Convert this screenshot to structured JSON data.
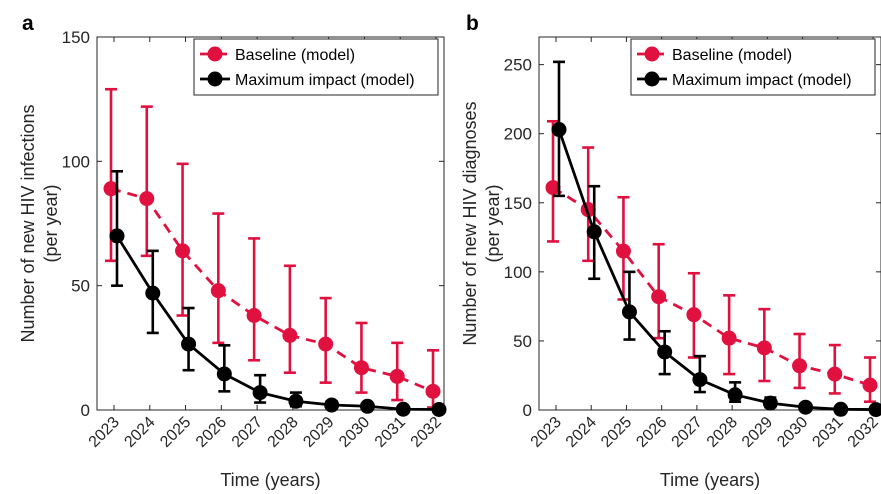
{
  "panel_labels": [
    "a",
    "b"
  ],
  "colors": {
    "baseline": "#E0103F",
    "maximum": "#000000",
    "axis": "#262626"
  },
  "chart_data": [
    {
      "type": "line",
      "panel": "a",
      "xlabel": "Time (years)",
      "ylabel": [
        "Number of new HIV infections",
        "(per year)"
      ],
      "categories": [
        "2023",
        "2024",
        "2025",
        "2026",
        "2027",
        "2028",
        "2029",
        "2030",
        "2031",
        "2032"
      ],
      "ylim": [
        0,
        150
      ],
      "yticks": [
        0,
        50,
        100,
        150
      ],
      "legend_position": "top-right",
      "series": [
        {
          "name": "Baseline (model)",
          "style": "dashed",
          "color": "#E0103F",
          "values": [
            89,
            85,
            64,
            48,
            38,
            30,
            26.5,
            17,
            13.5,
            7.5
          ],
          "lower": [
            60,
            62,
            38,
            27,
            20,
            15,
            11,
            7,
            4,
            1
          ],
          "upper": [
            129,
            122,
            99,
            79,
            69,
            58,
            45,
            35,
            27,
            24
          ]
        },
        {
          "name": "Maximum impact (model)",
          "style": "solid",
          "color": "#000000",
          "values": [
            70,
            47,
            26.5,
            14.5,
            7,
            3.5,
            2,
            1.5,
            0.3,
            0.2
          ],
          "lower": [
            50,
            31,
            16,
            7.5,
            3,
            1.5,
            1,
            0.5,
            0,
            0
          ],
          "upper": [
            96,
            64,
            41,
            26,
            14,
            7,
            3.5,
            2.5,
            0.8,
            0.6
          ]
        }
      ]
    },
    {
      "type": "line",
      "panel": "b",
      "xlabel": "Time (years)",
      "ylabel": [
        "Number of new HIV diagnoses",
        "(per year)"
      ],
      "categories": [
        "2023",
        "2024",
        "2025",
        "2026",
        "2027",
        "2028",
        "2029",
        "2030",
        "2031",
        "2032"
      ],
      "ylim": [
        0,
        270
      ],
      "yticks": [
        0,
        50,
        100,
        150,
        200,
        250
      ],
      "legend_position": "top-right",
      "series": [
        {
          "name": "Baseline (model)",
          "style": "dashed",
          "color": "#E0103F",
          "values": [
            161,
            145,
            115,
            82,
            69,
            52,
            45,
            32,
            26,
            18
          ],
          "lower": [
            122,
            108,
            80,
            52,
            38,
            26,
            21,
            16,
            12,
            6
          ],
          "upper": [
            209,
            190,
            154,
            120,
            99,
            83,
            73,
            55,
            47,
            38
          ]
        },
        {
          "name": "Maximum impact (model)",
          "style": "solid",
          "color": "#000000",
          "values": [
            203,
            129,
            71,
            42,
            22,
            11,
            5,
            2,
            0.5,
            0.3
          ],
          "lower": [
            155,
            95,
            51,
            26,
            13,
            6,
            2,
            0.5,
            0,
            0
          ],
          "upper": [
            252,
            162,
            100,
            57,
            39,
            20,
            9,
            4,
            1,
            0.8
          ]
        }
      ]
    }
  ]
}
